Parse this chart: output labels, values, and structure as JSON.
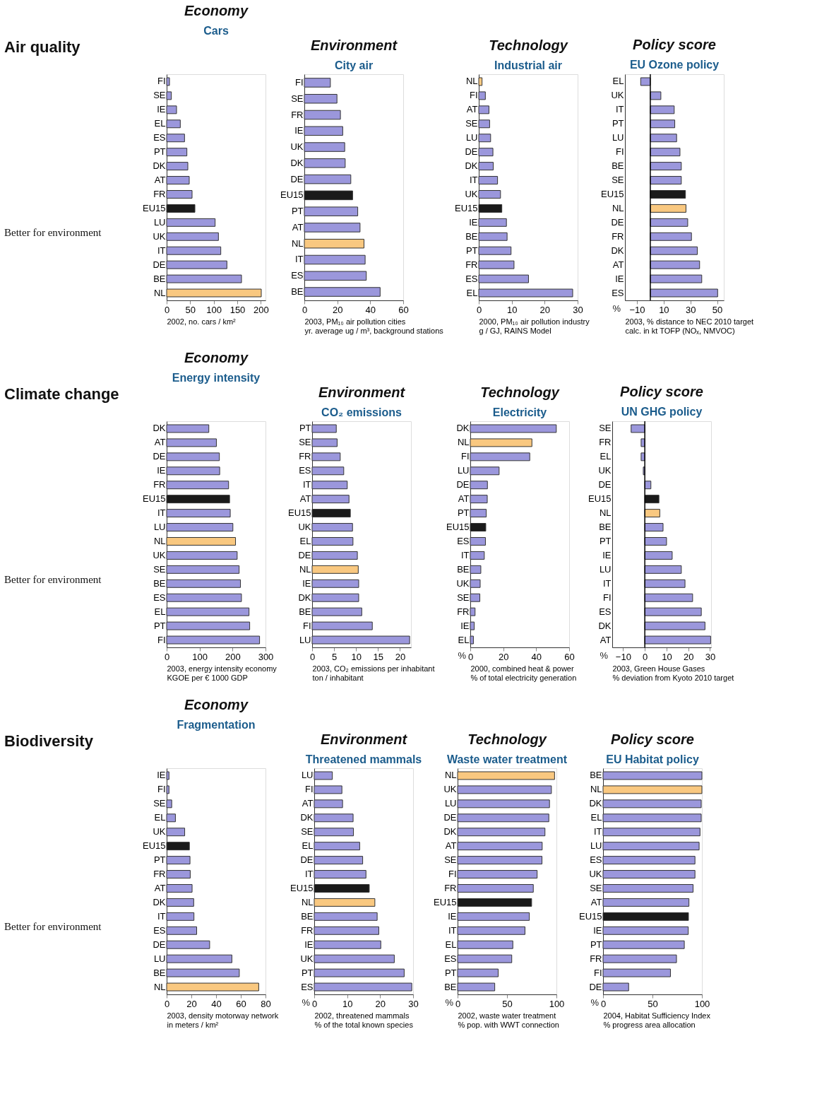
{
  "chart_data": [
    {
      "type": "bar",
      "orientation": "horizontal",
      "title": "Economy",
      "subtitle": "Cars",
      "xlabel": "2002, no. cars / km²",
      "annotations": [
        "Air quality",
        "Better for environment"
      ],
      "categories": [
        "FI",
        "SE",
        "IE",
        "EL",
        "ES",
        "PT",
        "DK",
        "AT",
        "FR",
        "EU15",
        "LU",
        "UK",
        "IT",
        "DE",
        "BE",
        "NL"
      ],
      "values": [
        6,
        10,
        21,
        29,
        38,
        43,
        45,
        48,
        54,
        60,
        103,
        110,
        115,
        128,
        159,
        201
      ],
      "colors": [
        "#9b97dc",
        "#9b97dc",
        "#9b97dc",
        "#9b97dc",
        "#9b97dc",
        "#9b97dc",
        "#9b97dc",
        "#9b97dc",
        "#9b97dc",
        "#1a1a1a",
        "#9b97dc",
        "#9b97dc",
        "#9b97dc",
        "#9b97dc",
        "#9b97dc",
        "#f9c880"
      ],
      "xlim": [
        0,
        210
      ],
      "xticks": [
        0,
        50,
        100,
        150,
        200
      ]
    },
    {
      "type": "bar",
      "orientation": "horizontal",
      "title": "Environment",
      "subtitle": "City air",
      "xlabel": "2003, PM₁₀ air pollution cities\nyr. average ug / m³, background stations",
      "categories": [
        "FI",
        "SE",
        "FR",
        "IE",
        "UK",
        "DK",
        "DE",
        "EU15",
        "PT",
        "AT",
        "NL",
        "IT",
        "ES",
        "BE"
      ],
      "values": [
        15.8,
        19.8,
        21.9,
        23.3,
        24.5,
        24.8,
        28.2,
        29.3,
        32.4,
        33.8,
        36.2,
        36.9,
        37.6,
        46
      ],
      "colors": [
        "#9b97dc",
        "#9b97dc",
        "#9b97dc",
        "#9b97dc",
        "#9b97dc",
        "#9b97dc",
        "#9b97dc",
        "#1a1a1a",
        "#9b97dc",
        "#9b97dc",
        "#f9c880",
        "#9b97dc",
        "#9b97dc",
        "#9b97dc"
      ],
      "xlim": [
        0,
        60
      ],
      "xticks": [
        0,
        20,
        40,
        60
      ]
    },
    {
      "type": "bar",
      "orientation": "horizontal",
      "title": "Technology",
      "subtitle": "Industrial air",
      "xlabel": "2000, PM₁₀ air pollution industry\ng / GJ, RAINS Model",
      "categories": [
        "NL",
        "FI",
        "AT",
        "SE",
        "LU",
        "DE",
        "DK",
        "IT",
        "UK",
        "EU15",
        "IE",
        "BE",
        "PT",
        "FR",
        "ES",
        "EL"
      ],
      "values": [
        1,
        2,
        3.1,
        3.3,
        3.6,
        4.3,
        4.4,
        5.7,
        6.6,
        7,
        8.4,
        8.6,
        9.8,
        10.7,
        15.1,
        28.5
      ],
      "colors": [
        "#f9c880",
        "#9b97dc",
        "#9b97dc",
        "#9b97dc",
        "#9b97dc",
        "#9b97dc",
        "#9b97dc",
        "#9b97dc",
        "#9b97dc",
        "#1a1a1a",
        "#9b97dc",
        "#9b97dc",
        "#9b97dc",
        "#9b97dc",
        "#9b97dc",
        "#9b97dc"
      ],
      "xlim": [
        0,
        30
      ],
      "xticks": [
        0,
        10,
        20,
        30
      ]
    },
    {
      "type": "bar",
      "orientation": "horizontal",
      "title": "Policy score",
      "subtitle": "EU Ozone policy",
      "xlabel": "2003, % distance to NEC 2010 target\ncalc. in kt TOFP (NOₓ, NMVOC)",
      "annotations": [
        "%"
      ],
      "categories": [
        "EL",
        "UK",
        "IT",
        "PT",
        "LU",
        "FI",
        "BE",
        "SE",
        "EU15",
        "NL",
        "DE",
        "FR",
        "DK",
        "AT",
        "IE",
        "ES"
      ],
      "values": [
        -7.2,
        7.9,
        17.9,
        18.3,
        19.7,
        22.2,
        23.2,
        23.2,
        26.3,
        26.7,
        28,
        30.8,
        35.2,
        36.9,
        38.5,
        50.4
      ],
      "colors": [
        "#9b97dc",
        "#9b97dc",
        "#9b97dc",
        "#9b97dc",
        "#9b97dc",
        "#9b97dc",
        "#9b97dc",
        "#9b97dc",
        "#1a1a1a",
        "#f9c880",
        "#9b97dc",
        "#9b97dc",
        "#9b97dc",
        "#9b97dc",
        "#9b97dc",
        "#9b97dc"
      ],
      "xlim": [
        -19,
        55
      ],
      "xticks": [
        -10,
        10,
        30,
        50
      ],
      "ref_lines": [
        {
          "axis": "x",
          "value": 0
        }
      ]
    },
    {
      "type": "bar",
      "orientation": "horizontal",
      "title": "Economy",
      "subtitle": "Energy intensity",
      "xlabel": "2003, energy intensity economy\nKGOE per € 1000 GDP",
      "annotations": [
        "Climate change",
        "Better for environment"
      ],
      "categories": [
        "DK",
        "AT",
        "DE",
        "IE",
        "FR",
        "EU15",
        "IT",
        "LU",
        "NL",
        "UK",
        "SE",
        "BE",
        "ES",
        "EL",
        "PT",
        "FI"
      ],
      "values": [
        128,
        151,
        160,
        161,
        188,
        191,
        193,
        201,
        209,
        214,
        220,
        224,
        227,
        250,
        252,
        282
      ],
      "colors": [
        "#9b97dc",
        "#9b97dc",
        "#9b97dc",
        "#9b97dc",
        "#9b97dc",
        "#1a1a1a",
        "#9b97dc",
        "#9b97dc",
        "#f9c880",
        "#9b97dc",
        "#9b97dc",
        "#9b97dc",
        "#9b97dc",
        "#9b97dc",
        "#9b97dc",
        "#9b97dc"
      ],
      "xlim": [
        0,
        300
      ],
      "xticks": [
        0,
        100,
        200,
        300
      ]
    },
    {
      "type": "bar",
      "orientation": "horizontal",
      "title": "Environment",
      "subtitle": "CO₂ emissions",
      "xlabel": "2003, CO₂ emissions per inhabitant\nton / inhabitant",
      "categories": [
        "PT",
        "SE",
        "FR",
        "ES",
        "IT",
        "AT",
        "EU15",
        "UK",
        "EL",
        "DE",
        "NL",
        "IE",
        "DK",
        "BE",
        "FI",
        "LU"
      ],
      "values": [
        5.5,
        5.7,
        6.4,
        7.2,
        8,
        8.4,
        8.7,
        9.2,
        9.3,
        10.3,
        10.5,
        10.6,
        10.6,
        11.3,
        13.7,
        22.2
      ],
      "colors": [
        "#9b97dc",
        "#9b97dc",
        "#9b97dc",
        "#9b97dc",
        "#9b97dc",
        "#9b97dc",
        "#1a1a1a",
        "#9b97dc",
        "#9b97dc",
        "#9b97dc",
        "#f9c880",
        "#9b97dc",
        "#9b97dc",
        "#9b97dc",
        "#9b97dc",
        "#9b97dc"
      ],
      "xlim": [
        0,
        22.5
      ],
      "xticks": [
        0,
        5,
        10,
        15,
        20
      ]
    },
    {
      "type": "bar",
      "orientation": "horizontal",
      "title": "Technology",
      "subtitle": "Electricity",
      "xlabel": "2000, combined heat & power\n% of total electricity generation",
      "annotations": [
        "%"
      ],
      "categories": [
        "DK",
        "NL",
        "FI",
        "LU",
        "DE",
        "AT",
        "PT",
        "EU15",
        "ES",
        "IT",
        "BE",
        "UK",
        "SE",
        "FR",
        "IE",
        "EL"
      ],
      "values": [
        52.2,
        37.4,
        36.1,
        17.5,
        10.4,
        10.3,
        9.7,
        9.4,
        9.2,
        8.5,
        6.4,
        6,
        5.8,
        2.9,
        2.4,
        1.9
      ],
      "colors": [
        "#9b97dc",
        "#f9c880",
        "#9b97dc",
        "#9b97dc",
        "#9b97dc",
        "#9b97dc",
        "#9b97dc",
        "#1a1a1a",
        "#9b97dc",
        "#9b97dc",
        "#9b97dc",
        "#9b97dc",
        "#9b97dc",
        "#9b97dc",
        "#9b97dc",
        "#9b97dc"
      ],
      "xlim": [
        0,
        60
      ],
      "xticks": [
        0,
        20,
        40,
        60
      ]
    },
    {
      "type": "bar",
      "orientation": "horizontal",
      "title": "Policy score",
      "subtitle": "UN GHG policy",
      "xlabel": "2003, Green House Gases\n% deviation from Kyoto 2010 target",
      "annotations": [
        "%"
      ],
      "categories": [
        "SE",
        "FR",
        "EL",
        "UK",
        "DE",
        "EU15",
        "NL",
        "BE",
        "PT",
        "IE",
        "LU",
        "IT",
        "FI",
        "ES",
        "DK",
        "AT"
      ],
      "values": [
        -6.3,
        -1.7,
        -1.7,
        -0.7,
        2.8,
        6.5,
        6.9,
        8.4,
        10,
        12.6,
        16.8,
        18.5,
        22,
        26,
        27.7,
        30.3
      ],
      "colors": [
        "#9b97dc",
        "#9b97dc",
        "#9b97dc",
        "#9b97dc",
        "#9b97dc",
        "#1a1a1a",
        "#f9c880",
        "#9b97dc",
        "#9b97dc",
        "#9b97dc",
        "#9b97dc",
        "#9b97dc",
        "#9b97dc",
        "#9b97dc",
        "#9b97dc",
        "#9b97dc"
      ],
      "xlim": [
        -15,
        30.5
      ],
      "xticks": [
        -10,
        0,
        10,
        20,
        30
      ],
      "ref_lines": [
        {
          "axis": "x",
          "value": 0
        }
      ]
    },
    {
      "type": "bar",
      "orientation": "horizontal",
      "title": "Economy",
      "subtitle": "Fragmentation",
      "xlabel": "2003, density motorway network\nin meters / km²",
      "annotations": [
        "Biodiversity",
        "Better for environment"
      ],
      "categories": [
        "IE",
        "FI",
        "SE",
        "EL",
        "UK",
        "EU15",
        "PT",
        "FR",
        "AT",
        "DK",
        "IT",
        "ES",
        "DE",
        "LU",
        "BE",
        "NL"
      ],
      "values": [
        1.9,
        1.9,
        4.1,
        7.1,
        14.6,
        18.4,
        18.9,
        19.1,
        20.6,
        21.9,
        22.1,
        24.3,
        34.8,
        52.8,
        58.8,
        74.5
      ],
      "colors": [
        "#9b97dc",
        "#9b97dc",
        "#9b97dc",
        "#9b97dc",
        "#9b97dc",
        "#1a1a1a",
        "#9b97dc",
        "#9b97dc",
        "#9b97dc",
        "#9b97dc",
        "#9b97dc",
        "#9b97dc",
        "#9b97dc",
        "#9b97dc",
        "#9b97dc",
        "#f9c880"
      ],
      "xlim": [
        0,
        80
      ],
      "xticks": [
        0,
        20,
        40,
        60,
        80
      ]
    },
    {
      "type": "bar",
      "orientation": "horizontal",
      "title": "Environment",
      "subtitle": "Threatened mammals",
      "xlabel": "2002, threatened mammals\n% of the total known species",
      "annotations": [
        "%"
      ],
      "categories": [
        "LU",
        "FI",
        "AT",
        "DK",
        "SE",
        "EL",
        "DE",
        "IT",
        "EU15",
        "NL",
        "BE",
        "FR",
        "IE",
        "UK",
        "PT",
        "ES"
      ],
      "values": [
        5.5,
        8.4,
        8.6,
        11.8,
        11.9,
        13.8,
        14.7,
        15.7,
        16.7,
        18.4,
        19.1,
        19.6,
        20.2,
        24.3,
        27.3,
        29.6
      ],
      "colors": [
        "#9b97dc",
        "#9b97dc",
        "#9b97dc",
        "#9b97dc",
        "#9b97dc",
        "#9b97dc",
        "#9b97dc",
        "#9b97dc",
        "#1a1a1a",
        "#f9c880",
        "#9b97dc",
        "#9b97dc",
        "#9b97dc",
        "#9b97dc",
        "#9b97dc",
        "#9b97dc"
      ],
      "xlim": [
        0,
        30
      ],
      "xticks": [
        0,
        10,
        20,
        30
      ]
    },
    {
      "type": "bar",
      "orientation": "horizontal",
      "title": "Technology",
      "subtitle": "Waste water treatment",
      "xlabel": "2002, waste water treatment\n% pop. with WWT connection",
      "annotations": [
        "%"
      ],
      "categories": [
        "NL",
        "UK",
        "LU",
        "DE",
        "DK",
        "AT",
        "SE",
        "FI",
        "FR",
        "EU15",
        "IE",
        "IT",
        "EL",
        "ES",
        "PT",
        "BE"
      ],
      "values": [
        98.1,
        94.9,
        93,
        92.3,
        88.4,
        85.6,
        85.4,
        80.5,
        76.6,
        74.9,
        72.6,
        68.2,
        55.9,
        54.8,
        41.1,
        37.6
      ],
      "colors": [
        "#f9c880",
        "#9b97dc",
        "#9b97dc",
        "#9b97dc",
        "#9b97dc",
        "#9b97dc",
        "#9b97dc",
        "#9b97dc",
        "#9b97dc",
        "#1a1a1a",
        "#9b97dc",
        "#9b97dc",
        "#9b97dc",
        "#9b97dc",
        "#9b97dc",
        "#9b97dc"
      ],
      "xlim": [
        0,
        100
      ],
      "xticks": [
        0,
        50,
        100
      ]
    },
    {
      "type": "bar",
      "orientation": "horizontal",
      "title": "Policy score",
      "subtitle": "EU Habitat policy",
      "xlabel": "2004, Habitat Sufficiency Index\n% progress area allocation",
      "annotations": [
        "%"
      ],
      "categories": [
        "BE",
        "NL",
        "DK",
        "EL",
        "IT",
        "LU",
        "ES",
        "UK",
        "SE",
        "AT",
        "EU15",
        "IE",
        "PT",
        "FR",
        "FI",
        "DE"
      ],
      "values": [
        100,
        100,
        99.3,
        99.3,
        98.1,
        97.2,
        93,
        93,
        91.1,
        86.9,
        86.4,
        86.2,
        82.2,
        74.3,
        68.2,
        25.9
      ],
      "colors": [
        "#9b97dc",
        "#f9c880",
        "#9b97dc",
        "#9b97dc",
        "#9b97dc",
        "#9b97dc",
        "#9b97dc",
        "#9b97dc",
        "#9b97dc",
        "#9b97dc",
        "#1a1a1a",
        "#9b97dc",
        "#9b97dc",
        "#9b97dc",
        "#9b97dc",
        "#9b97dc"
      ],
      "xlim": [
        0,
        100
      ],
      "xticks": [
        0,
        50,
        100
      ]
    }
  ]
}
